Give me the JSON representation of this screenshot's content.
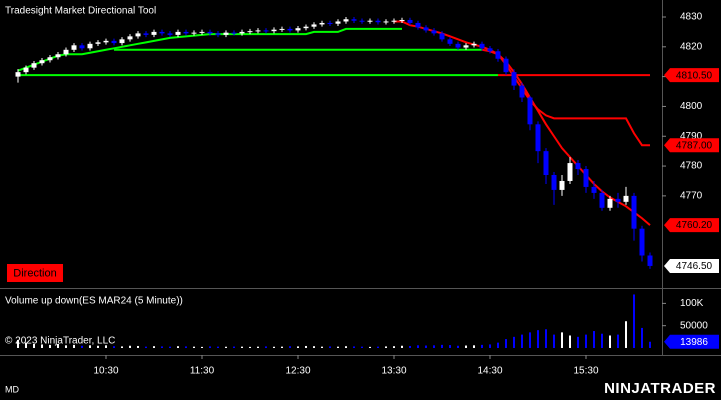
{
  "chart_data": [
    {
      "type": "candlestick",
      "title": "Tradesight Market Directional Tool",
      "annotation": "Direction",
      "ylim": [
        4739.1,
        4835.7
      ],
      "yticks": [
        4770,
        4780,
        4790,
        4800,
        4810,
        4820,
        4830
      ],
      "up_color": "#ffffff",
      "down_color": "#0000ff",
      "candles": {
        "open": [
          4810,
          4811.5,
          4813,
          4814.5,
          4815.5,
          4816.5,
          4817.5,
          4819,
          4820.5,
          4819.5,
          4821,
          4821.5,
          4822,
          4821.25,
          4822.5,
          4823.5,
          4824.5,
          4824,
          4825,
          4824.5,
          4824,
          4825,
          4824.5,
          4824.75,
          4825,
          4824.5,
          4824,
          4824.75,
          4824.5,
          4825,
          4825.25,
          4825.5,
          4825.25,
          4825.75,
          4826,
          4825.5,
          4826.25,
          4826.75,
          4827.5,
          4828,
          4827.75,
          4828.5,
          4829.25,
          4828.75,
          4828.5,
          4828.75,
          4828.25,
          4828.5,
          4828.75,
          4829,
          4828,
          4826.5,
          4825.5,
          4824.5,
          4822.5,
          4821,
          4819.75,
          4820.5,
          4821,
          4819.5,
          4818.5,
          4816,
          4811.5,
          4807,
          4803,
          4794,
          4785,
          4777,
          4772,
          4775,
          4781,
          4779,
          4773,
          4771,
          4766,
          4769,
          4768,
          4770,
          4759,
          4750
        ],
        "high": [
          4812.5,
          4813.75,
          4815.25,
          4816.25,
          4817.25,
          4818.25,
          4819.75,
          4821.25,
          4821.25,
          4821.75,
          4822.25,
          4822.75,
          4822.75,
          4823.25,
          4824.25,
          4825.25,
          4825.25,
          4825.75,
          4825.75,
          4825.25,
          4825.75,
          4825.75,
          4825.5,
          4825.75,
          4825.75,
          4825.25,
          4825.5,
          4825.5,
          4825.75,
          4826,
          4826.25,
          4826.25,
          4826.5,
          4826.75,
          4826.75,
          4827,
          4827.5,
          4828.25,
          4828.75,
          4828.75,
          4829.25,
          4830,
          4830,
          4829.5,
          4829.5,
          4829.5,
          4829.25,
          4829.5,
          4829.75,
          4829.75,
          4828.75,
          4827.25,
          4826.25,
          4825.25,
          4823.25,
          4821.75,
          4821.25,
          4821.75,
          4821.75,
          4820.25,
          4819.25,
          4816.75,
          4812.5,
          4808,
          4803.5,
          4795,
          4786,
          4778,
          4777,
          4783,
          4782,
          4780,
          4775,
          4772,
          4770,
          4771,
          4773,
          4771,
          4760,
          4751
        ],
        "low": [
          4808,
          4810.75,
          4812.25,
          4813.75,
          4814.75,
          4815.75,
          4816.75,
          4818.25,
          4818.75,
          4818.75,
          4820.25,
          4820.75,
          4820.5,
          4820.5,
          4821.75,
          4822.75,
          4823.25,
          4823.25,
          4823.75,
          4823.25,
          4823.25,
          4823.75,
          4823.75,
          4824,
          4823.75,
          4823.25,
          4823.25,
          4823.75,
          4823.75,
          4824.25,
          4824.5,
          4824.5,
          4824.5,
          4825,
          4824.75,
          4824.75,
          4825.5,
          4826,
          4826.75,
          4827,
          4827,
          4827.75,
          4828,
          4827.75,
          4827.75,
          4827.5,
          4827.5,
          4827.75,
          4828,
          4827.25,
          4825.75,
          4824.75,
          4823.75,
          4821.75,
          4820.25,
          4819,
          4819,
          4819.75,
          4818.75,
          4817.75,
          4815,
          4810.5,
          4805.5,
          4801.5,
          4792,
          4781,
          4774,
          4767,
          4770,
          4774,
          4777,
          4771,
          4769,
          4765,
          4765,
          4766,
          4767,
          4755,
          4748,
          4745.5
        ],
        "close": [
          4811.5,
          4813,
          4814.5,
          4815.5,
          4816.5,
          4817.5,
          4819,
          4820.5,
          4819.5,
          4821,
          4821.5,
          4822,
          4821.25,
          4822.5,
          4823.5,
          4824.5,
          4824,
          4825,
          4824.5,
          4824,
          4825,
          4824.5,
          4824.75,
          4825,
          4824.5,
          4824,
          4824.75,
          4824.5,
          4825,
          4825.25,
          4825.5,
          4825.25,
          4825.75,
          4826,
          4825.5,
          4826.25,
          4826.75,
          4827.5,
          4828,
          4827.75,
          4828.5,
          4829.25,
          4828.75,
          4828.5,
          4828.75,
          4828.25,
          4828.5,
          4828.75,
          4829,
          4828,
          4826.5,
          4825.5,
          4824.5,
          4822.5,
          4821,
          4819.75,
          4820.5,
          4821,
          4819.5,
          4818.5,
          4816,
          4811.5,
          4807,
          4803,
          4794,
          4785,
          4777,
          4772,
          4775,
          4781,
          4779,
          4773,
          4771,
          4766,
          4769,
          4768,
          4770,
          4759,
          4750,
          4746.5
        ]
      },
      "lines": [
        {
          "color": "#00ff00",
          "values": [
            4812,
            4813,
            4814,
            4815,
            4816,
            4817,
            4817.5,
            4817.5,
            4817.5,
            4818,
            4818.5,
            4819,
            4819.5,
            4820,
            4820.5,
            4821,
            4821.5,
            4822,
            4822.5,
            4823,
            4823.25,
            4823.5,
            4823.75,
            4824,
            4824.25,
            4824.25,
            4824.25,
            4824.25,
            4824.25,
            4824.25,
            4824.25,
            4824.25,
            4824.25,
            4824.25,
            4824.25,
            4824.25,
            4824.25,
            4825,
            4825,
            4825,
            4825,
            4826,
            4826,
            4826,
            4826,
            4826,
            4826,
            4826,
            4826,
            null,
            null,
            null,
            null,
            null,
            null,
            null,
            null,
            null,
            null,
            null,
            null,
            null,
            null,
            null,
            null,
            null,
            null,
            null,
            null,
            null,
            null,
            null,
            null,
            null,
            null,
            null,
            null,
            null,
            null,
            null
          ]
        },
        {
          "color": "#ff0000",
          "values": [
            null,
            null,
            null,
            null,
            null,
            null,
            null,
            null,
            null,
            null,
            null,
            null,
            null,
            null,
            null,
            null,
            null,
            null,
            null,
            null,
            null,
            null,
            null,
            null,
            null,
            null,
            null,
            null,
            null,
            null,
            null,
            null,
            null,
            null,
            null,
            null,
            null,
            null,
            null,
            null,
            null,
            null,
            null,
            null,
            null,
            null,
            null,
            4828.5,
            4828.5,
            4827.25,
            4826.75,
            4826,
            4825.25,
            4824.5,
            4823.5,
            4822.5,
            4821.5,
            4820.75,
            4820,
            4819,
            4817.5,
            4815,
            4811.5,
            4807.5,
            4803,
            4798.5,
            4794,
            4790,
            4786,
            4783,
            4780,
            4777,
            4774,
            4771.5,
            4769.5,
            4768,
            4766.5,
            4764.5,
            4762.5,
            4760.2
          ]
        },
        {
          "color": "#00ff00",
          "values": [
            null,
            null,
            null,
            null,
            null,
            null,
            null,
            null,
            null,
            null,
            null,
            null,
            4819,
            4819,
            4819,
            4819,
            4819,
            4819,
            4819,
            4819,
            4819,
            4819,
            4819,
            4819,
            4819,
            4819,
            4819,
            4819,
            4819,
            4819,
            4819,
            4819,
            4819,
            4819,
            4819,
            4819,
            4819,
            4819,
            4819,
            4819,
            4819,
            4819,
            4819,
            4819,
            4819,
            4819,
            4819,
            4819,
            4819,
            4819,
            4819,
            4819,
            4819,
            4819,
            4819,
            4819,
            4819,
            4819,
            4819,
            null,
            null,
            null,
            null,
            null,
            null,
            null,
            null,
            null,
            null,
            null,
            null,
            null,
            null,
            null,
            null,
            null,
            null,
            null,
            null,
            null
          ]
        },
        {
          "color": "#ff0000",
          "values": [
            null,
            null,
            null,
            null,
            null,
            null,
            null,
            null,
            null,
            null,
            null,
            null,
            null,
            null,
            null,
            null,
            null,
            null,
            null,
            null,
            null,
            null,
            null,
            null,
            null,
            null,
            null,
            null,
            null,
            null,
            null,
            null,
            null,
            null,
            null,
            null,
            null,
            null,
            null,
            null,
            null,
            null,
            null,
            null,
            null,
            null,
            null,
            null,
            null,
            null,
            null,
            null,
            null,
            null,
            null,
            null,
            null,
            null,
            4819,
            4818.5,
            4817.5,
            4814,
            4810,
            4806,
            4802,
            4799,
            4797,
            4796,
            4796,
            4796,
            4796,
            4796,
            4796,
            4796,
            4796,
            4796,
            4796,
            4791,
            4787,
            4787
          ]
        },
        {
          "color": "#00ff00",
          "values": [
            4810.5,
            4810.5,
            4810.5,
            4810.5,
            4810.5,
            4810.5,
            4810.5,
            4810.5,
            4810.5,
            4810.5,
            4810.5,
            4810.5,
            4810.5,
            4810.5,
            4810.5,
            4810.5,
            4810.5,
            4810.5,
            4810.5,
            4810.5,
            4810.5,
            4810.5,
            4810.5,
            4810.5,
            4810.5,
            4810.5,
            4810.5,
            4810.5,
            4810.5,
            4810.5,
            4810.5,
            4810.5,
            4810.5,
            4810.5,
            4810.5,
            4810.5,
            4810.5,
            4810.5,
            4810.5,
            4810.5,
            4810.5,
            4810.5,
            4810.5,
            4810.5,
            4810.5,
            4810.5,
            4810.5,
            4810.5,
            4810.5,
            4810.5,
            4810.5,
            4810.5,
            4810.5,
            4810.5,
            4810.5,
            4810.5,
            4810.5,
            4810.5,
            4810.5,
            4810.5,
            4810.5,
            null,
            null,
            null,
            null,
            null,
            null,
            null,
            null,
            null,
            null,
            null,
            null,
            null,
            null,
            null,
            null,
            null,
            null,
            null
          ]
        },
        {
          "color": "#ff0000",
          "values": [
            null,
            null,
            null,
            null,
            null,
            null,
            null,
            null,
            null,
            null,
            null,
            null,
            null,
            null,
            null,
            null,
            null,
            null,
            null,
            null,
            null,
            null,
            null,
            null,
            null,
            null,
            null,
            null,
            null,
            null,
            null,
            null,
            null,
            null,
            null,
            null,
            null,
            null,
            null,
            null,
            null,
            null,
            null,
            null,
            null,
            null,
            null,
            null,
            null,
            null,
            null,
            null,
            null,
            null,
            null,
            null,
            null,
            null,
            null,
            null,
            4810.5,
            4810.5,
            4810.5,
            4810.5,
            4810.5,
            4810.5,
            4810.5,
            4810.5,
            4810.5,
            4810.5,
            4810.5,
            4810.5,
            4810.5,
            4810.5,
            4810.5,
            4810.5,
            4810.5,
            4810.5,
            4810.5,
            4810.5
          ]
        }
      ],
      "y_markers": [
        {
          "value": 4810.5,
          "label": "4810.50",
          "color": "#ff0000"
        },
        {
          "value": 4787,
          "label": "4787.00",
          "color": "#ff0000"
        },
        {
          "value": 4760.2,
          "label": "4760.20",
          "color": "#ff0000"
        },
        {
          "value": 4746.5,
          "label": "4746.50",
          "color": "#ffffff"
        }
      ]
    },
    {
      "type": "bar",
      "title": "Volume up down(ES MAR24 (5 Minute))",
      "copyright": "© 2023 NinjaTrader, LLC",
      "categories": [
        null,
        null,
        null,
        null,
        null,
        null,
        null,
        null,
        null,
        null,
        null,
        "10:30",
        null,
        null,
        null,
        null,
        null,
        null,
        null,
        null,
        null,
        null,
        null,
        "11:30",
        null,
        null,
        null,
        null,
        null,
        null,
        null,
        null,
        null,
        null,
        null,
        "12:30",
        null,
        null,
        null,
        null,
        null,
        null,
        null,
        null,
        null,
        null,
        null,
        "13:30",
        null,
        null,
        null,
        null,
        null,
        null,
        null,
        null,
        null,
        null,
        null,
        "14:30",
        null,
        null,
        null,
        null,
        null,
        null,
        null,
        null,
        null,
        null,
        null,
        "15:30",
        null,
        null,
        null,
        null,
        null,
        null,
        null,
        null
      ],
      "values": [
        18000,
        12000,
        9000,
        8000,
        7000,
        9000,
        6000,
        7000,
        5000,
        6000,
        5000,
        6000,
        4000,
        3500,
        5000,
        4500,
        3000,
        4000,
        3500,
        3000,
        4000,
        3500,
        3000,
        2500,
        3500,
        3000,
        2800,
        3200,
        3000,
        2500,
        3000,
        3500,
        2800,
        3000,
        4000,
        3500,
        4500,
        4000,
        3000,
        3500,
        3000,
        4000,
        3500,
        3000,
        2500,
        3000,
        3500,
        4000,
        5000,
        4500,
        6000,
        5500,
        6000,
        7000,
        6500,
        5000,
        5500,
        6000,
        7000,
        8000,
        12000,
        20000,
        25000,
        30000,
        35000,
        40000,
        42000,
        30000,
        35000,
        28000,
        25000,
        30000,
        38000,
        32000,
        28000,
        30000,
        60000,
        120000,
        45000,
        13986
      ],
      "up_color": "#ffffff",
      "down_color": "#0000ff",
      "marker_color": "#0000ff",
      "ylim": [
        -9000,
        130000
      ],
      "yticks": [
        50000,
        {
          "value": 100000,
          "label": "100K"
        }
      ]
    }
  ],
  "footer": {
    "left": "MD",
    "brand": "NINJATRADER"
  }
}
